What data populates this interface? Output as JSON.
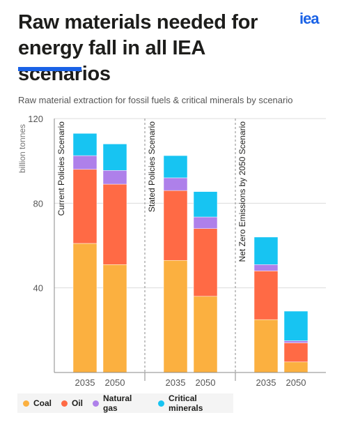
{
  "header": {
    "title_line1": "Raw materials needed for",
    "title_line2": "energy fall in all IEA scenarios",
    "logo": "iea",
    "accent_color": "#1a62e6"
  },
  "chart_data": {
    "type": "bar",
    "stacked": true,
    "title": "Raw material extraction for fossil fuels & critical minerals by scenario",
    "ylabel": "billion tonnes",
    "ylim": [
      0,
      120
    ],
    "yticks": [
      40,
      80,
      120
    ],
    "grid": true,
    "groups": [
      {
        "name": "Current Policies Scenario",
        "categories": [
          "2035",
          "2050"
        ]
      },
      {
        "name": "Stated Policies Scenario",
        "categories": [
          "2035",
          "2050"
        ]
      },
      {
        "name": "Net Zero Emissions by 2050 Scenario",
        "categories": [
          "2035",
          "2050"
        ]
      }
    ],
    "series": [
      {
        "name": "Coal",
        "color": "#fbb040",
        "values": [
          61,
          51,
          53,
          36,
          25,
          5
        ]
      },
      {
        "name": "Oil",
        "color": "#ff6a45",
        "values": [
          35,
          38,
          33,
          32,
          23,
          9
        ]
      },
      {
        "name": "Natural gas",
        "color": "#ae80ea",
        "values": [
          6.5,
          6.5,
          6,
          5.5,
          3,
          1
        ]
      },
      {
        "name": "Critical minerals",
        "color": "#17c4f2",
        "values": [
          10.5,
          12.5,
          10.5,
          12,
          13,
          14
        ]
      }
    ],
    "legend_position": "bottom-left"
  }
}
